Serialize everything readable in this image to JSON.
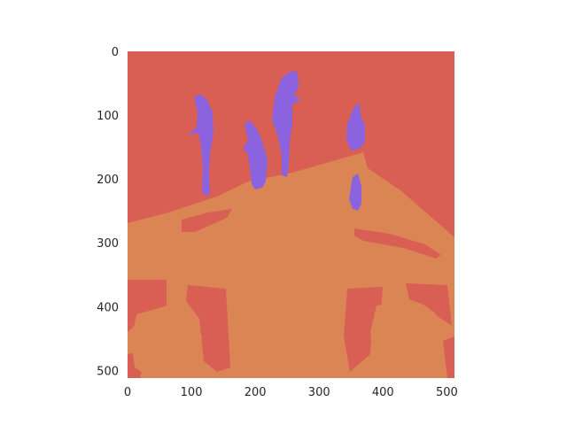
{
  "colors": {
    "background_class": "#D95F55",
    "structure_class": "#DB8555",
    "figure_class": "#8B63DE"
  },
  "chart_data": {
    "type": "heatmap",
    "image_size": [
      512,
      512
    ],
    "xlim": [
      0,
      512
    ],
    "ylim": [
      512,
      0
    ],
    "grid": false,
    "x_ticks": [
      0,
      100,
      200,
      300,
      400,
      500
    ],
    "y_ticks": [
      0,
      100,
      200,
      300,
      400,
      500
    ],
    "x_tick_labels": [
      "0",
      "100",
      "200",
      "300",
      "400",
      "500"
    ],
    "y_tick_labels": [
      "0",
      "100",
      "200",
      "300",
      "400",
      "500"
    ]
  }
}
